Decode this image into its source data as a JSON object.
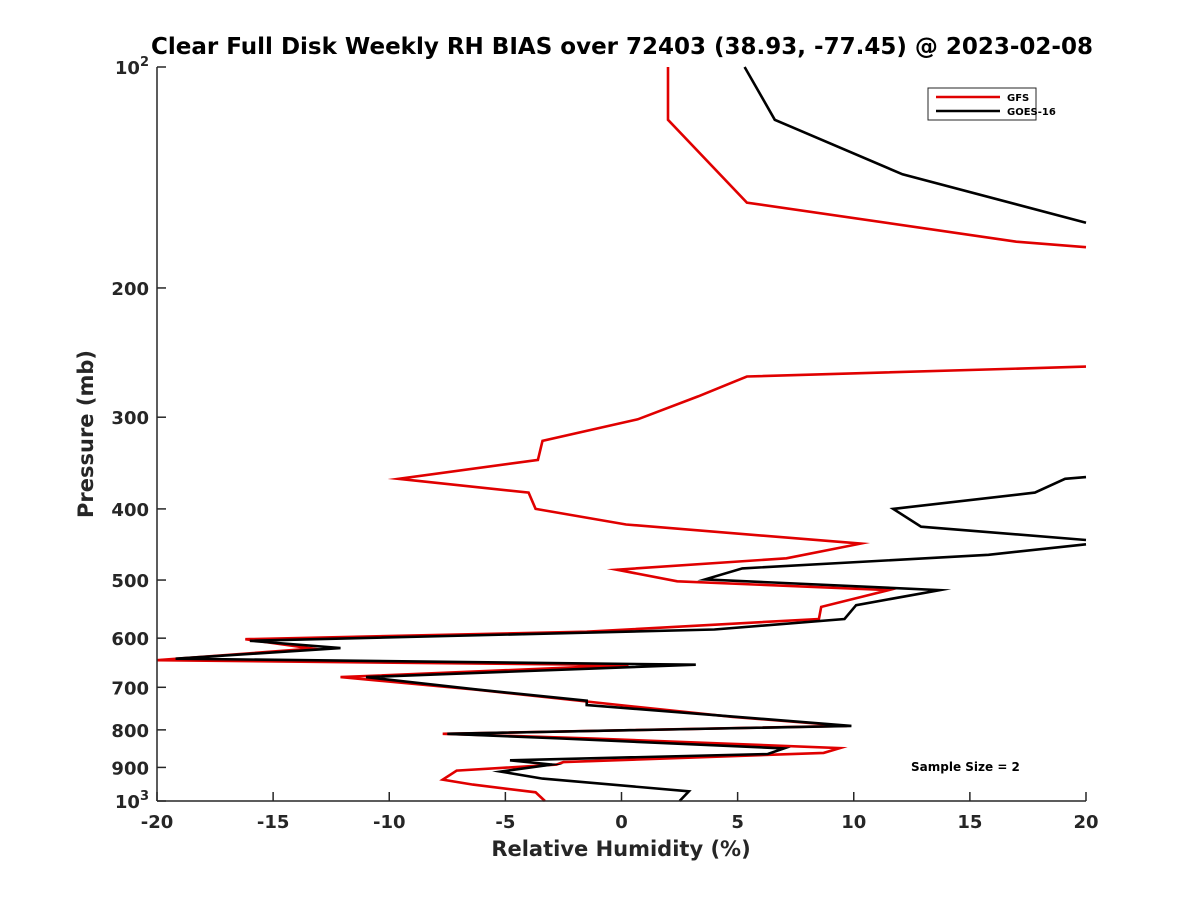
{
  "chart_data": {
    "type": "line",
    "title": "Clear Full Disk Weekly RH BIAS over 72403 (38.93, -77.45) @ 2023-02-08",
    "xlabel": "Relative Humidity (%)",
    "ylabel": "Pressure (mb)",
    "xlim": [
      -20,
      20
    ],
    "ylim": [
      100,
      1000
    ],
    "y_scale": "log",
    "y_reversed": true,
    "grid": false,
    "legend_position": "top-right",
    "x_ticks": [
      "-20",
      "-15",
      "-10",
      "-5",
      "0",
      "5",
      "10",
      "15",
      "20"
    ],
    "y_ticks": [
      {
        "value": 100,
        "base": "10",
        "exp": "2"
      },
      {
        "value": 200,
        "label": "200"
      },
      {
        "value": 300,
        "label": "300"
      },
      {
        "value": 400,
        "label": "400"
      },
      {
        "value": 500,
        "label": "500"
      },
      {
        "value": 600,
        "label": "600"
      },
      {
        "value": 700,
        "label": "700"
      },
      {
        "value": 800,
        "label": "800"
      },
      {
        "value": 900,
        "label": "900"
      },
      {
        "value": 1000,
        "base": "10",
        "exp": "3"
      }
    ],
    "annotation": "Sample Size = 2",
    "series": [
      {
        "name": "GFS",
        "color": "#e00000",
        "segments": [
          [
            [
              2,
              100
            ],
            [
              2,
              118
            ],
            [
              5.4,
              153
            ],
            [
              17,
              173
            ],
            [
              20,
              176
            ]
          ],
          [
            [
              20,
              256
            ],
            [
              5.4,
              264
            ],
            [
              3.3,
              281
            ],
            [
              0.7,
              302
            ],
            [
              -3.4,
              323
            ],
            [
              -3.6,
              343
            ],
            [
              -9.6,
              364
            ],
            [
              -4,
              380
            ],
            [
              -3.7,
              400
            ],
            [
              0.2,
              420
            ],
            [
              10.3,
              446
            ],
            [
              7.1,
              467
            ],
            [
              -0.2,
              484
            ],
            [
              2.4,
              502
            ],
            [
              11.5,
              516
            ],
            [
              8.6,
              544
            ],
            [
              8.5,
              565
            ],
            [
              -1.5,
              588
            ],
            [
              -16.2,
              602
            ],
            [
              -13.3,
              620
            ],
            [
              -20,
              643
            ],
            [
              0.3,
              653
            ],
            [
              -12.1,
              678
            ],
            [
              -6.3,
              705
            ],
            [
              -0.1,
              740
            ],
            [
              4.8,
              768
            ],
            [
              9.7,
              790
            ],
            [
              -7.7,
              810
            ],
            [
              -1.2,
              822
            ],
            [
              9.4,
              847
            ],
            [
              8.7,
              860
            ],
            [
              -2.5,
              885
            ],
            [
              -2.8,
              892
            ],
            [
              -7.1,
              909
            ],
            [
              -7.7,
              935
            ],
            [
              -6.4,
              950
            ],
            [
              -3.7,
              973
            ],
            [
              -3.3,
              1000
            ]
          ]
        ]
      },
      {
        "name": "GOES-16",
        "color": "#000000",
        "segments": [
          [
            [
              5.3,
              100
            ],
            [
              6.6,
              118
            ],
            [
              12.1,
              140
            ],
            [
              20,
              163
            ]
          ],
          [
            [
              20,
              362
            ],
            [
              19.1,
              364
            ],
            [
              17.8,
              380
            ],
            [
              11.7,
              400
            ],
            [
              12.9,
              423
            ],
            [
              20,
              441
            ]
          ],
          [
            [
              20,
              447
            ],
            [
              15.8,
              462
            ],
            [
              5.2,
              482
            ],
            [
              3.6,
              499
            ],
            [
              13.7,
              516
            ],
            [
              10.1,
              541
            ],
            [
              9.6,
              565
            ],
            [
              4,
              584
            ],
            [
              -16,
              605
            ],
            [
              -12.1,
              619
            ],
            [
              -19.2,
              640
            ],
            [
              3.2,
              652
            ],
            [
              -11,
              678
            ],
            [
              -6.2,
              705
            ],
            [
              -1.5,
              730
            ],
            [
              -1.5,
              740
            ],
            [
              5,
              768
            ],
            [
              9.9,
              790
            ],
            [
              -7.5,
              810
            ],
            [
              -2.6,
              822
            ],
            [
              7,
              848
            ],
            [
              6.3,
              863
            ],
            [
              -4.8,
              880
            ],
            [
              -3,
              892
            ],
            [
              -5.2,
              912
            ],
            [
              -3.4,
              932
            ],
            [
              2.9,
              970
            ],
            [
              2.5,
              1000
            ]
          ]
        ]
      }
    ]
  }
}
